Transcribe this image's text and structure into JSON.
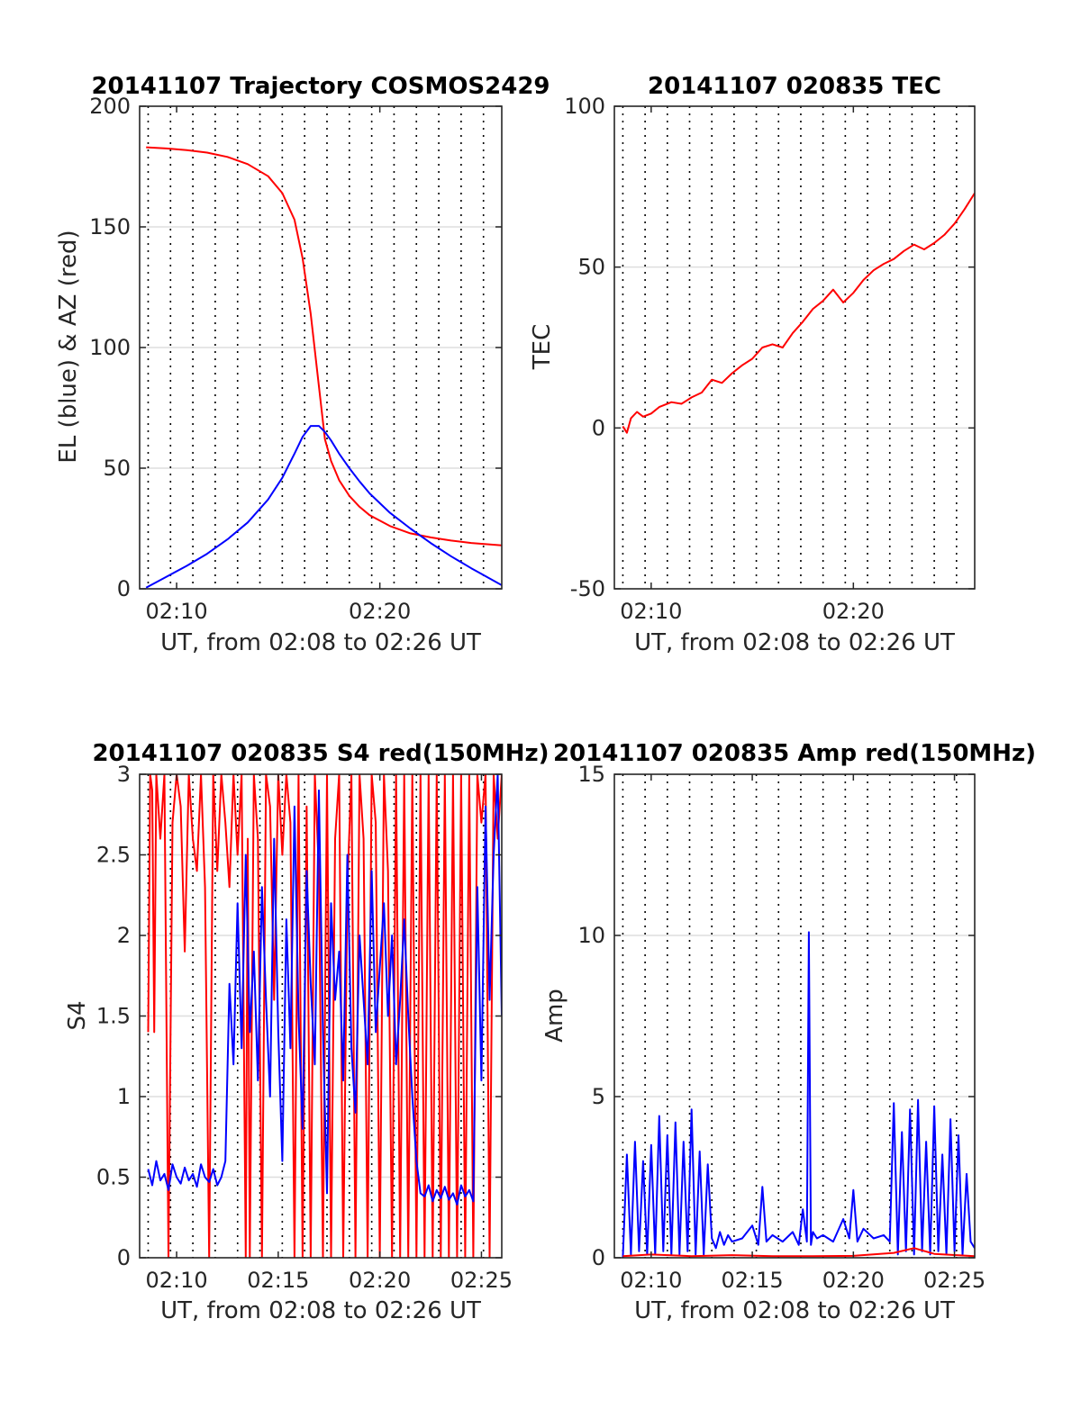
{
  "colors": {
    "elevation": "#0000ff",
    "azimuth": "#ff0000",
    "tec": "#ff0000",
    "s4_red": "#ff0000",
    "s4_blue": "#0000ff",
    "amp_red": "#ff0000",
    "amp_blue": "#0000ff",
    "grid": "#dedede",
    "axis": "#262626"
  },
  "chart_data": [
    {
      "type": "line",
      "title": "20141107 Trajectory COSMOS2429",
      "xlabel": "UT, from 02:08 to 02:26 UT",
      "ylabel": "EL (blue) & AZ (red)",
      "xlim": [
        0.18,
        18.0
      ],
      "ylim": [
        0,
        200
      ],
      "xticks": [
        {
          "value": 2.0,
          "label": "02:10"
        },
        {
          "value": 12.0,
          "label": "02:20"
        }
      ],
      "yticks": [
        {
          "value": 0,
          "label": "0"
        },
        {
          "value": 50,
          "label": "50"
        },
        {
          "value": 100,
          "label": "100"
        },
        {
          "value": 150,
          "label": "150"
        },
        {
          "value": 200,
          "label": "200"
        }
      ],
      "grid": true,
      "x_unit": "minutes after 02:08 UT",
      "series": [
        {
          "color_key": "azimuth",
          "x": [
            0.5,
            1.5,
            2.5,
            3.5,
            4.5,
            5.5,
            6.5,
            7.2,
            7.8,
            8.2,
            8.6,
            9.0,
            9.3,
            9.6,
            10.0,
            10.5,
            11.0,
            11.5,
            12.5,
            13.5,
            14.5,
            15.5,
            16.5,
            18.0
          ],
          "y": [
            183,
            182.5,
            181.8,
            180.8,
            179,
            176,
            171,
            164,
            153,
            137,
            114,
            84,
            62,
            53,
            45,
            38.5,
            34,
            30.5,
            26,
            23,
            21.3,
            20,
            19,
            18
          ]
        },
        {
          "color_key": "elevation",
          "x": [
            0.5,
            1.5,
            2.5,
            3.5,
            4.5,
            5.5,
            6.5,
            7.2,
            7.8,
            8.2,
            8.6,
            9.0,
            9.3,
            9.6,
            10.0,
            10.5,
            11.0,
            11.5,
            12.5,
            13.5,
            14.5,
            15.5,
            16.5,
            18.0
          ],
          "y": [
            0.5,
            5,
            9.5,
            14.5,
            20.5,
            27.5,
            37,
            46,
            56,
            63,
            67.5,
            67.5,
            65,
            61.5,
            56,
            50,
            44.5,
            39.5,
            31.5,
            25,
            19,
            13.5,
            8.5,
            1.5
          ]
        }
      ]
    },
    {
      "type": "line",
      "title": "20141107 020835 TEC",
      "xlabel": "UT, from 02:08 to 02:26 UT",
      "ylabel": "TEC",
      "xlim": [
        0.18,
        18.0
      ],
      "ylim": [
        -50,
        100
      ],
      "xticks": [
        {
          "value": 2.0,
          "label": "02:10"
        },
        {
          "value": 12.0,
          "label": "02:20"
        }
      ],
      "yticks": [
        {
          "value": -50,
          "label": "-50"
        },
        {
          "value": 0,
          "label": "0"
        },
        {
          "value": 50,
          "label": "50"
        },
        {
          "value": 100,
          "label": "100"
        }
      ],
      "grid": true,
      "x_unit": "minutes after 02:08 UT",
      "series": [
        {
          "color_key": "tec",
          "x": [
            0.6,
            0.8,
            1.0,
            1.3,
            1.6,
            2.0,
            2.4,
            3.0,
            3.5,
            4.0,
            4.5,
            5.0,
            5.5,
            6.0,
            6.5,
            7.0,
            7.5,
            8.0,
            8.5,
            9.0,
            9.5,
            10.0,
            10.5,
            11.0,
            11.5,
            12.0,
            12.5,
            13.0,
            13.5,
            14.0,
            14.5,
            15.0,
            15.5,
            16.0,
            16.5,
            17.0,
            17.5,
            18.0
          ],
          "y": [
            0.5,
            -1.5,
            3,
            5,
            3.5,
            4.5,
            6.5,
            8,
            7.5,
            9.5,
            11,
            15,
            14,
            17,
            19.5,
            21.5,
            25,
            26,
            25,
            29.5,
            33,
            37,
            39.5,
            43,
            39,
            42,
            46,
            49,
            51,
            52.5,
            55,
            57,
            55.5,
            57.5,
            60,
            63.5,
            68,
            73
          ]
        }
      ]
    },
    {
      "type": "line",
      "title": "20141107 020835 S4 red(150MHz)",
      "xlabel": "UT, from 02:08 to 02:26 UT",
      "ylabel": "S4",
      "xlim": [
        0.18,
        18.0
      ],
      "ylim": [
        0,
        3
      ],
      "xticks": [
        {
          "value": 2.0,
          "label": "02:10"
        },
        {
          "value": 7.0,
          "label": "02:15"
        },
        {
          "value": 12.0,
          "label": "02:20"
        },
        {
          "value": 17.0,
          "label": "02:25"
        }
      ],
      "yticks": [
        {
          "value": 0,
          "label": "0"
        },
        {
          "value": 0.5,
          "label": "0.5"
        },
        {
          "value": 1,
          "label": "1"
        },
        {
          "value": 1.5,
          "label": "1.5"
        },
        {
          "value": 2,
          "label": "2"
        },
        {
          "value": 2.5,
          "label": "2.5"
        },
        {
          "value": 3,
          "label": "3"
        }
      ],
      "grid": true,
      "x_unit": "minutes after 02:08 UT",
      "series": [
        {
          "color_key": "s4_red",
          "x": [
            0.6,
            0.7,
            0.8,
            0.9,
            1.0,
            1.2,
            1.4,
            1.6,
            1.8,
            2.0,
            2.2,
            2.4,
            2.6,
            2.8,
            3.0,
            3.2,
            3.4,
            3.6,
            3.8,
            4.0,
            4.2,
            4.4,
            4.6,
            4.8,
            5.0,
            5.2,
            5.4,
            5.5,
            5.6,
            5.8,
            6.0,
            6.2,
            6.4,
            6.6,
            6.8,
            7.0,
            7.2,
            7.4,
            7.6,
            7.8,
            8.0,
            8.2,
            8.4,
            8.6,
            8.8,
            9.0,
            9.2,
            9.4,
            9.6,
            9.8,
            10.0,
            10.2,
            10.4,
            10.6,
            10.8,
            11.0,
            11.2,
            11.4,
            11.6,
            11.8,
            12.0,
            12.2,
            12.4,
            12.6,
            12.8,
            13.0,
            13.2,
            13.4,
            13.6,
            13.8,
            14.0,
            14.2,
            14.4,
            14.6,
            14.8,
            15.0,
            15.2,
            15.4,
            15.6,
            15.8,
            16.0,
            16.2,
            16.4,
            16.6,
            16.8,
            17.0,
            17.2,
            17.4,
            17.6,
            17.8,
            18.0
          ],
          "y": [
            1.4,
            3,
            2.9,
            1.4,
            3,
            2.6,
            3,
            0,
            2.7,
            3,
            2.8,
            1.9,
            3,
            2.6,
            2.4,
            3,
            2.3,
            0,
            3,
            2.4,
            3,
            2.7,
            2.3,
            3,
            2.5,
            3,
            0,
            2.6,
            0,
            3,
            2.6,
            0,
            3,
            2.8,
            1.6,
            3,
            2.5,
            3,
            2.7,
            0,
            3,
            0,
            2.8,
            0,
            3,
            2.4,
            0,
            3,
            0,
            2.6,
            3,
            0,
            2.3,
            3,
            0,
            3,
            2.6,
            0,
            3,
            2.7,
            0,
            3,
            2.4,
            0,
            3,
            0,
            3,
            0,
            3,
            0,
            3,
            0,
            3,
            0,
            3,
            0,
            3,
            0,
            3,
            0,
            3,
            0,
            3,
            0,
            3,
            2.7,
            3,
            0,
            3,
            2.6,
            3
          ]
        },
        {
          "color_key": "s4_blue",
          "x": [
            0.6,
            0.8,
            1.0,
            1.2,
            1.4,
            1.6,
            1.8,
            2.0,
            2.2,
            2.4,
            2.6,
            2.8,
            3.0,
            3.2,
            3.4,
            3.6,
            3.8,
            4.0,
            4.2,
            4.4,
            4.6,
            4.8,
            5.0,
            5.2,
            5.4,
            5.6,
            5.8,
            6.0,
            6.2,
            6.4,
            6.6,
            6.8,
            7.0,
            7.2,
            7.4,
            7.6,
            7.8,
            8.0,
            8.2,
            8.4,
            8.6,
            8.8,
            9.0,
            9.2,
            9.4,
            9.6,
            9.8,
            10.0,
            10.2,
            10.4,
            10.6,
            10.8,
            11.0,
            11.2,
            11.4,
            11.6,
            11.8,
            12.0,
            12.2,
            12.4,
            12.6,
            12.8,
            13.0,
            13.2,
            13.4,
            13.6,
            13.8,
            14.0,
            14.2,
            14.4,
            14.6,
            14.8,
            15.0,
            15.2,
            15.4,
            15.6,
            15.8,
            16.0,
            16.2,
            16.4,
            16.6,
            16.8,
            17.0,
            17.2,
            17.4,
            17.6,
            17.8,
            18.0
          ],
          "y": [
            0.55,
            0.45,
            0.6,
            0.48,
            0.52,
            0.42,
            0.58,
            0.5,
            0.46,
            0.56,
            0.48,
            0.52,
            0.44,
            0.58,
            0.5,
            0.47,
            0.55,
            0.45,
            0.5,
            0.6,
            1.7,
            1.2,
            2.2,
            1.3,
            2.5,
            1.4,
            1.9,
            1.1,
            2.3,
            1.6,
            1.0,
            2.6,
            1.4,
            0.6,
            2.1,
            1.3,
            2.8,
            1.5,
            0.8,
            2.4,
            1.7,
            1.2,
            2.9,
            1.4,
            0.4,
            2.2,
            1.6,
            1.9,
            1.1,
            2.5,
            1.3,
            0.9,
            2.0,
            1.6,
            1.2,
            2.4,
            1.4,
            1.8,
            2.2,
            1.5,
            2.0,
            1.2,
            1.6,
            2.1,
            1.5,
            1.0,
            0.6,
            0.4,
            0.38,
            0.45,
            0.35,
            0.42,
            0.37,
            0.44,
            0.36,
            0.4,
            0.33,
            0.45,
            0.38,
            0.42,
            0.35,
            2.3,
            1.1,
            2.8,
            1.6,
            2.5,
            3.0,
            1.5
          ]
        }
      ]
    },
    {
      "type": "line",
      "title": "20141107 020835 Amp red(150MHz)",
      "xlabel": "UT, from 02:08 to 02:26 UT",
      "ylabel": "Amp",
      "xlim": [
        0.18,
        18.0
      ],
      "ylim": [
        0,
        15
      ],
      "xticks": [
        {
          "value": 2.0,
          "label": "02:10"
        },
        {
          "value": 7.0,
          "label": "02:15"
        },
        {
          "value": 12.0,
          "label": "02:20"
        },
        {
          "value": 17.0,
          "label": "02:25"
        }
      ],
      "yticks": [
        {
          "value": 0,
          "label": "0"
        },
        {
          "value": 5,
          "label": "5"
        },
        {
          "value": 10,
          "label": "10"
        },
        {
          "value": 15,
          "label": "15"
        }
      ],
      "grid": true,
      "x_unit": "minutes after 02:08 UT",
      "series": [
        {
          "color_key": "amp_blue",
          "x": [
            0.6,
            0.8,
            1.0,
            1.2,
            1.4,
            1.6,
            1.8,
            2.0,
            2.2,
            2.4,
            2.6,
            2.8,
            3.0,
            3.2,
            3.4,
            3.6,
            3.8,
            4.0,
            4.2,
            4.4,
            4.6,
            4.8,
            5.0,
            5.2,
            5.4,
            5.6,
            5.8,
            6.0,
            6.5,
            7.0,
            7.3,
            7.5,
            7.7,
            8.0,
            8.5,
            9.0,
            9.3,
            9.5,
            9.7,
            9.8,
            9.9,
            10.0,
            10.2,
            10.5,
            11.0,
            11.5,
            11.8,
            12.0,
            12.2,
            12.5,
            13.0,
            13.5,
            13.8,
            14.0,
            14.2,
            14.4,
            14.6,
            14.8,
            15.0,
            15.2,
            15.4,
            15.6,
            15.8,
            16.0,
            16.2,
            16.4,
            16.6,
            16.8,
            17.0,
            17.2,
            17.4,
            17.6,
            17.8,
            18.0
          ],
          "y": [
            0,
            3.2,
            0.1,
            3.6,
            0.2,
            3.0,
            0.1,
            3.5,
            0.1,
            4.4,
            0.2,
            3.8,
            0.1,
            4.2,
            0.1,
            3.6,
            0.2,
            4.6,
            0.1,
            3.3,
            0.1,
            2.9,
            0.6,
            0.3,
            0.8,
            0.4,
            0.7,
            0.5,
            0.6,
            1.0,
            0.4,
            2.2,
            0.5,
            0.7,
            0.5,
            0.8,
            0.4,
            1.5,
            0.5,
            10.1,
            0.4,
            0.8,
            0.6,
            0.7,
            0.5,
            1.2,
            0.6,
            2.1,
            0.5,
            0.9,
            0.6,
            0.7,
            0.5,
            4.8,
            0.1,
            3.9,
            0.2,
            4.6,
            0.1,
            4.9,
            0.2,
            3.6,
            0.1,
            4.7,
            0.2,
            3.2,
            0.1,
            4.3,
            0.2,
            3.8,
            0.1,
            2.6,
            0.5,
            0.3
          ]
        },
        {
          "color_key": "amp_red",
          "x": [
            0.6,
            2.0,
            4.0,
            6.0,
            8.0,
            10.0,
            12.0,
            14.0,
            15.0,
            16.0,
            18.0
          ],
          "y": [
            0.05,
            0.1,
            0.05,
            0.08,
            0.05,
            0.05,
            0.06,
            0.15,
            0.3,
            0.12,
            0.05
          ]
        }
      ]
    }
  ]
}
